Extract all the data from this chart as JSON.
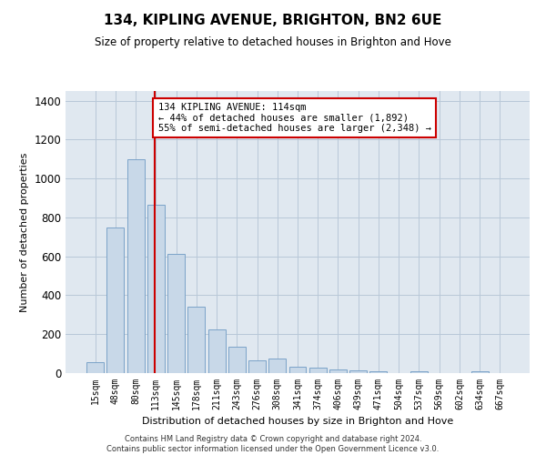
{
  "title": "134, KIPLING AVENUE, BRIGHTON, BN2 6UE",
  "subtitle": "Size of property relative to detached houses in Brighton and Hove",
  "xlabel": "Distribution of detached houses by size in Brighton and Hove",
  "ylabel": "Number of detached properties",
  "footer": "Contains HM Land Registry data © Crown copyright and database right 2024.\nContains public sector information licensed under the Open Government Licence v3.0.",
  "categories": [
    "15sqm",
    "48sqm",
    "80sqm",
    "113sqm",
    "145sqm",
    "178sqm",
    "211sqm",
    "243sqm",
    "276sqm",
    "308sqm",
    "341sqm",
    "374sqm",
    "406sqm",
    "439sqm",
    "471sqm",
    "504sqm",
    "537sqm",
    "569sqm",
    "602sqm",
    "634sqm",
    "667sqm"
  ],
  "values": [
    55,
    750,
    1100,
    865,
    615,
    340,
    225,
    135,
    65,
    75,
    35,
    30,
    20,
    12,
    10,
    0,
    10,
    0,
    0,
    10,
    0
  ],
  "bar_color": "#c8d8e8",
  "bar_edge_color": "#7ba3c8",
  "grid_color": "#b8c8d8",
  "bg_color": "#e0e8f0",
  "annotation_line1": "134 KIPLING AVENUE: 114sqm",
  "annotation_line2": "← 44% of detached houses are smaller (1,892)",
  "annotation_line3": "55% of semi-detached houses are larger (2,348) →",
  "annotation_border_color": "#cc0000",
  "vline_color": "#cc0000",
  "ylim": [
    0,
    1450
  ],
  "yticks": [
    0,
    200,
    400,
    600,
    800,
    1000,
    1200,
    1400
  ],
  "vline_pos": 2.93
}
